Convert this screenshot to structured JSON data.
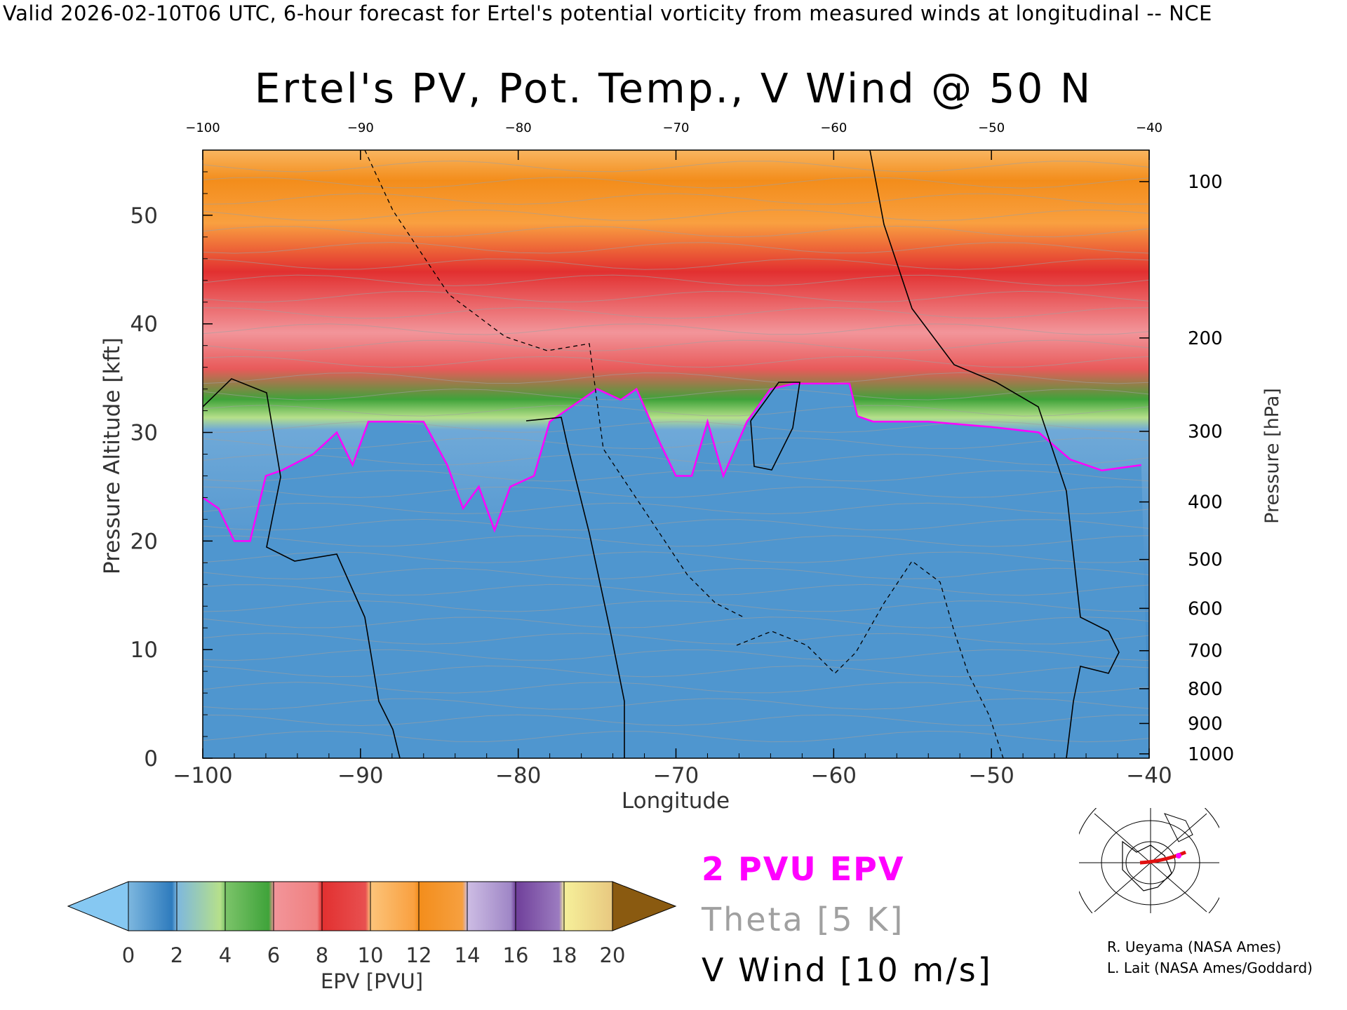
{
  "header": "Valid 2026-02-10T06 UTC, 6-hour forecast for Ertel's potential vorticity from measured winds at longitudinal -- NCE",
  "chart_data": {
    "type": "heatmap",
    "title": "Ertel's PV, Pot. Temp., V Wind @ 50 N",
    "xlabel": "Longitude",
    "ylabel": "Pressure Altitude [kft]",
    "y2label": "Pressure [hPa]",
    "xlim": [
      -100,
      -40
    ],
    "ylim": [
      0,
      56
    ],
    "x_ticks": [
      "-100",
      "-90",
      "-80",
      "-70",
      "-60",
      "-50",
      "-40"
    ],
    "x_top_ticks": [
      "-100",
      "-90",
      "-80",
      "-70",
      "-60",
      "-50",
      "-40"
    ],
    "y_ticks": [
      "0",
      "10",
      "20",
      "30",
      "40",
      "50"
    ],
    "pressure_ticks": [
      {
        "label": "100",
        "kft": 53.1
      },
      {
        "label": "200",
        "kft": 38.7
      },
      {
        "label": "300",
        "kft": 30.1
      },
      {
        "label": "400",
        "kft": 23.6
      },
      {
        "label": "500",
        "kft": 18.3
      },
      {
        "label": "600",
        "kft": 13.8
      },
      {
        "label": "700",
        "kft": 9.9
      },
      {
        "label": "800",
        "kft": 6.4
      },
      {
        "label": "900",
        "kft": 3.2
      },
      {
        "label": "1000",
        "kft": 0.4
      }
    ],
    "tropopause_2pvu_kft": [
      {
        "lon": -100,
        "kft": 24
      },
      {
        "lon": -99,
        "kft": 23
      },
      {
        "lon": -98,
        "kft": 20
      },
      {
        "lon": -97,
        "kft": 20
      },
      {
        "lon": -96,
        "kft": 26
      },
      {
        "lon": -95,
        "kft": 26.5
      },
      {
        "lon": -93,
        "kft": 28
      },
      {
        "lon": -91.5,
        "kft": 30
      },
      {
        "lon": -90.5,
        "kft": 27
      },
      {
        "lon": -89.5,
        "kft": 31
      },
      {
        "lon": -88,
        "kft": 31
      },
      {
        "lon": -86,
        "kft": 31
      },
      {
        "lon": -84.5,
        "kft": 27
      },
      {
        "lon": -83.5,
        "kft": 23
      },
      {
        "lon": -82.5,
        "kft": 25
      },
      {
        "lon": -81.5,
        "kft": 21
      },
      {
        "lon": -80.5,
        "kft": 25
      },
      {
        "lon": -79,
        "kft": 26
      },
      {
        "lon": -78,
        "kft": 31
      },
      {
        "lon": -76,
        "kft": 33
      },
      {
        "lon": -75,
        "kft": 34
      },
      {
        "lon": -73.5,
        "kft": 33
      },
      {
        "lon": -72.5,
        "kft": 34
      },
      {
        "lon": -71,
        "kft": 29
      },
      {
        "lon": -70,
        "kft": 26
      },
      {
        "lon": -69,
        "kft": 26
      },
      {
        "lon": -68,
        "kft": 31
      },
      {
        "lon": -67,
        "kft": 26
      },
      {
        "lon": -65.5,
        "kft": 31
      },
      {
        "lon": -64,
        "kft": 34
      },
      {
        "lon": -62.5,
        "kft": 34.5
      },
      {
        "lon": -59,
        "kft": 34.5
      },
      {
        "lon": -58.5,
        "kft": 31.5
      },
      {
        "lon": -57.5,
        "kft": 31
      },
      {
        "lon": -54,
        "kft": 31
      },
      {
        "lon": -50,
        "kft": 30.5
      },
      {
        "lon": -47,
        "kft": 30
      },
      {
        "lon": -45,
        "kft": 27.5
      },
      {
        "lon": -43,
        "kft": 26.5
      },
      {
        "lon": -40.5,
        "kft": 27
      }
    ],
    "theta_levels_K": [
      "290",
      "300",
      "310",
      "320",
      "330",
      "340",
      "350",
      "360",
      "370",
      "380",
      "390",
      "400",
      "410",
      "420"
    ],
    "colorbar": {
      "label": "EPV [PVU]",
      "ticks": [
        "0",
        "2",
        "4",
        "6",
        "8",
        "10",
        "12",
        "14",
        "16",
        "18",
        "20"
      ],
      "colors": [
        "#2e7bbd",
        "#7db7df",
        "#b6e08a",
        "#3fa33a",
        "#f2959a",
        "#e23030",
        "#f9b560",
        "#f38d1b",
        "#b9a6d6",
        "#6f3f9a",
        "#f6f09a"
      ],
      "under_color": "#86c8f2",
      "over_color": "#8a5a10"
    },
    "legend": [
      "2 PVU EPV",
      "Theta [5 K]",
      "V Wind [10 m/s]"
    ]
  },
  "credits": [
    "R. Ueyama (NASA Ames)",
    "L. Lait (NASA Ames/Goddard)"
  ],
  "colors": {
    "pv_contour": "#ff00ff",
    "theta_contour": "#a0a0a0",
    "wind_contour": "#000000"
  }
}
